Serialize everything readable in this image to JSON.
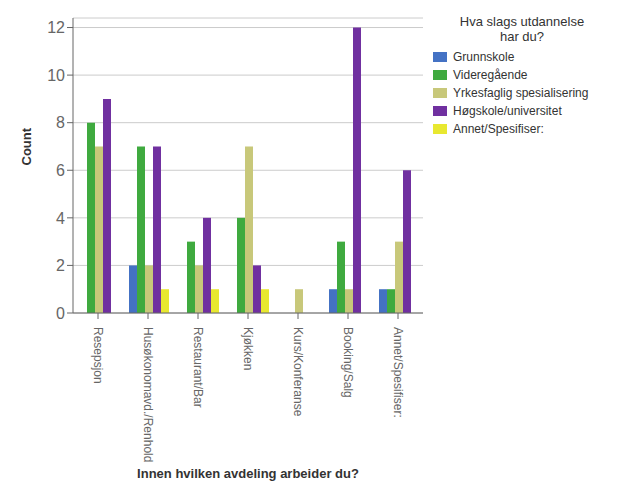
{
  "chart_data": {
    "type": "bar",
    "categories": [
      "Resepsjon",
      "Husøkonomavd./Renhold",
      "Restaurant/Bar",
      "Kjøkken",
      "Kurs/Konferanse",
      "Booking/Salg",
      "Annet/Spesifiser:"
    ],
    "series": [
      {
        "name": "Grunnskole",
        "color": "#4472c4",
        "values": [
          0,
          2,
          0,
          0,
          0,
          1,
          1
        ]
      },
      {
        "name": "Videregående",
        "color": "#3faa3f",
        "values": [
          8,
          7,
          3,
          4,
          0,
          3,
          1
        ]
      },
      {
        "name": "Yrkesfaglig spesialisering",
        "color": "#c8c87a",
        "values": [
          7,
          2,
          2,
          7,
          1,
          1,
          3
        ]
      },
      {
        "name": "Høgskole/universitet",
        "color": "#7030a0",
        "values": [
          9,
          7,
          4,
          2,
          0,
          12,
          6
        ]
      },
      {
        "name": "Annet/Spesifiser:",
        "color": "#e8e830",
        "values": [
          0,
          1,
          1,
          1,
          0,
          0,
          0
        ]
      }
    ],
    "xlabel": "Innen hvilken avdeling arbeider du?",
    "ylabel": "Count",
    "legend_title": "Hva slags utdannelse\nhar du?",
    "ylim": [
      0,
      12.4
    ],
    "yticks": [
      0,
      2,
      4,
      6,
      8,
      10,
      12
    ],
    "grid": true,
    "legend": "right"
  }
}
